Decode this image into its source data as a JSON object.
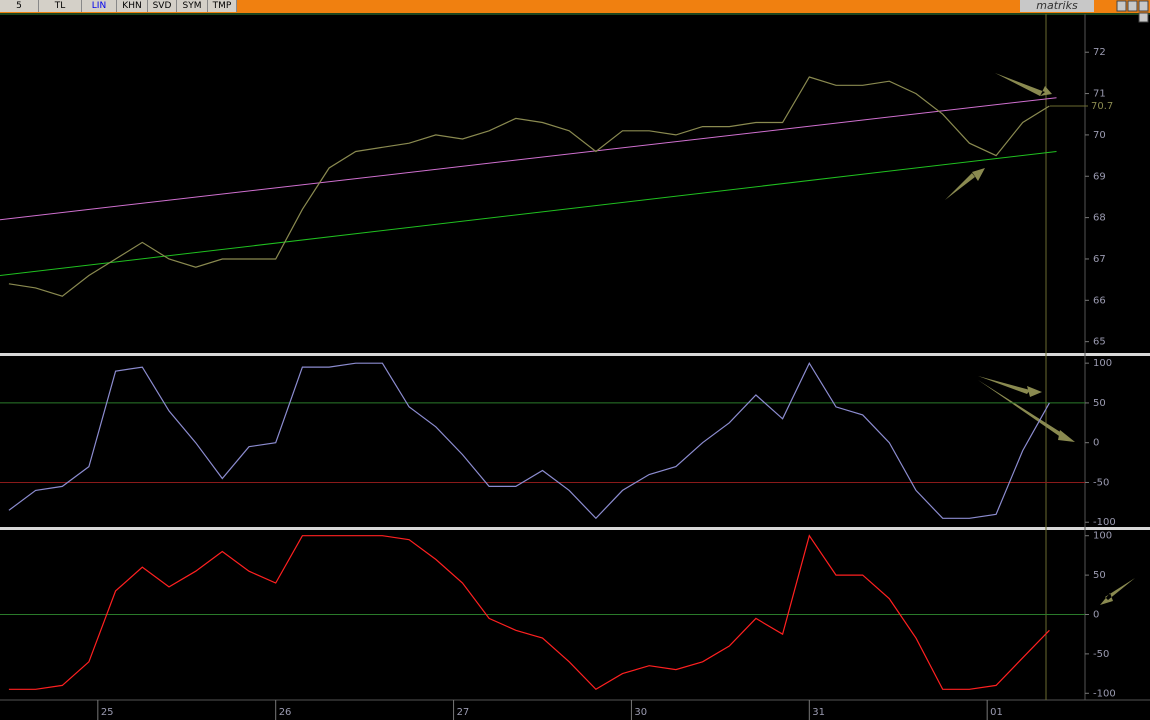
{
  "toolbar": {
    "buttons": [
      "5",
      "TL",
      "LIN",
      "KHN",
      "SVD",
      "SYM",
      "TMP"
    ],
    "brand": "matriks"
  },
  "chart_data": [
    {
      "type": "line",
      "color": "#8a8a50",
      "x": [
        -0.5,
        -0.35,
        -0.2,
        -0.05,
        0.1,
        0.25,
        0.4,
        0.55,
        0.7,
        0.85,
        1.0,
        1.15,
        1.3,
        1.45,
        1.6,
        1.75,
        1.9,
        2.05,
        2.2,
        2.35,
        2.5,
        2.65,
        2.8,
        2.95,
        3.1,
        3.25,
        3.4,
        3.55,
        3.7,
        3.85,
        4.0,
        4.15,
        4.3,
        4.45,
        4.6,
        4.75,
        4.9,
        5.05,
        5.2,
        5.35
      ],
      "values": [
        66.4,
        66.3,
        66.1,
        66.6,
        67.0,
        67.4,
        67.0,
        66.8,
        67.0,
        67.0,
        67.0,
        68.2,
        69.2,
        69.6,
        69.7,
        69.8,
        70.0,
        69.9,
        70.1,
        70.4,
        70.3,
        70.1,
        69.6,
        70.1,
        70.1,
        70.0,
        70.2,
        70.2,
        70.3,
        70.3,
        71.4,
        71.2,
        71.2,
        71.3,
        71.0,
        70.5,
        69.8,
        69.5,
        70.3,
        70.7
      ],
      "last_value": 70.7,
      "trendlines": [
        {
          "color": "#d070d0",
          "x": [
            -0.55,
            5.39
          ],
          "values": [
            67.95,
            70.9
          ]
        },
        {
          "color": "#20c020",
          "x": [
            -0.55,
            5.39
          ],
          "values": [
            66.6,
            69.6
          ]
        }
      ],
      "xlim": [
        -0.55,
        5.55
      ],
      "ylim": [
        64.75,
        72.9
      ],
      "yticks": [
        65,
        66,
        67,
        68,
        69,
        70,
        71,
        72
      ]
    },
    {
      "type": "line",
      "color": "#8c8cd0",
      "x": [
        -0.5,
        -0.35,
        -0.2,
        -0.05,
        0.1,
        0.25,
        0.4,
        0.55,
        0.7,
        0.85,
        1.0,
        1.15,
        1.3,
        1.45,
        1.6,
        1.75,
        1.9,
        2.05,
        2.2,
        2.35,
        2.5,
        2.65,
        2.8,
        2.95,
        3.1,
        3.25,
        3.4,
        3.55,
        3.7,
        3.85,
        4.0,
        4.15,
        4.3,
        4.45,
        4.6,
        4.75,
        4.9,
        5.05,
        5.2,
        5.35
      ],
      "values": [
        -85,
        -60,
        -55,
        -30,
        90,
        95,
        40,
        0,
        -45,
        -5,
        0,
        95,
        95,
        100,
        100,
        45,
        20,
        -15,
        -55,
        -55,
        -35,
        -60,
        -95,
        -60,
        -40,
        -30,
        0,
        25,
        60,
        30,
        100,
        45,
        35,
        0,
        -60,
        -95,
        -95,
        -90,
        -10,
        50
      ],
      "hlines": [
        {
          "value": 50,
          "color": "#2a7a2a"
        },
        {
          "value": -50,
          "color": "#8a1a1a"
        }
      ],
      "xlim": [
        -0.55,
        5.55
      ],
      "ylim": [
        -106,
        109
      ],
      "yticks": [
        -100,
        -50,
        0,
        50,
        100
      ]
    },
    {
      "type": "line",
      "color": "#ff2020",
      "x": [
        -0.5,
        -0.35,
        -0.2,
        -0.05,
        0.1,
        0.25,
        0.4,
        0.55,
        0.7,
        0.85,
        1.0,
        1.15,
        1.3,
        1.45,
        1.6,
        1.75,
        1.9,
        2.05,
        2.2,
        2.35,
        2.5,
        2.65,
        2.8,
        2.95,
        3.1,
        3.25,
        3.4,
        3.55,
        3.7,
        3.85,
        4.0,
        4.15,
        4.3,
        4.45,
        4.6,
        4.75,
        4.9,
        5.05,
        5.2,
        5.35
      ],
      "values": [
        -95,
        -95,
        -90,
        -60,
        30,
        60,
        35,
        55,
        80,
        55,
        40,
        100,
        100,
        100,
        100,
        95,
        70,
        40,
        -5,
        -20,
        -30,
        -60,
        -95,
        -75,
        -65,
        -70,
        -60,
        -40,
        -5,
        -25,
        100,
        50,
        50,
        20,
        -30,
        -95,
        -95,
        -90,
        -55,
        -20
      ],
      "hlines": [
        {
          "value": 0,
          "color": "#2a7a2a"
        }
      ],
      "xlim": [
        -0.55,
        5.55
      ],
      "ylim": [
        -106,
        106
      ],
      "yticks": [
        -100,
        -50,
        0,
        50,
        100
      ],
      "xticks": [
        {
          "value": 0,
          "label": "25"
        },
        {
          "value": 1,
          "label": "26"
        },
        {
          "value": 2,
          "label": "27"
        },
        {
          "value": 3,
          "label": "30"
        },
        {
          "value": 4,
          "label": "31"
        },
        {
          "value": 5,
          "label": "01"
        }
      ]
    }
  ]
}
